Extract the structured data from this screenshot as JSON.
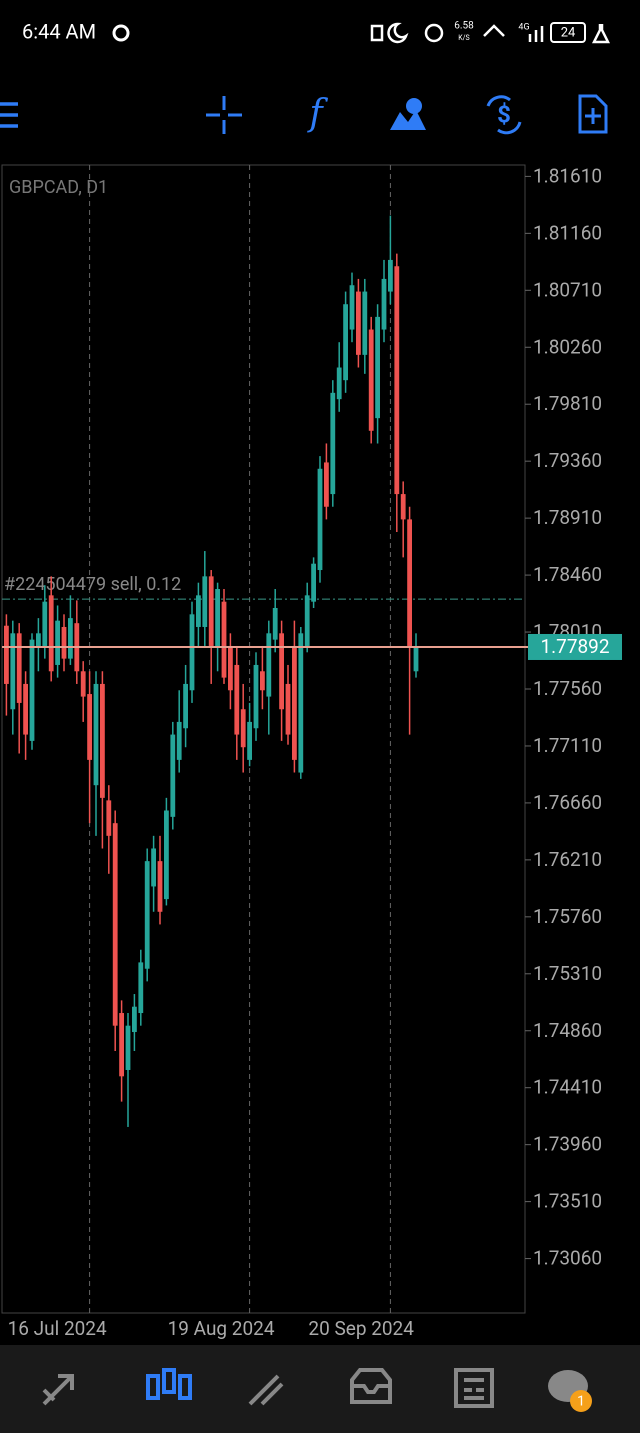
{
  "status_bar": {
    "time": "6:44 AM",
    "net_speed": "6.58",
    "net_unit": "K/S",
    "network": "4G",
    "battery": "24"
  },
  "chart_data": {
    "type": "candlestick",
    "title": "GBPCAD, D1",
    "categories": [
      null,
      null,
      null,
      null,
      null,
      null,
      null,
      null,
      null,
      null,
      null,
      null,
      null,
      "16 Jul 2024",
      null,
      null,
      null,
      null,
      null,
      null,
      null,
      null,
      null,
      null,
      null,
      null,
      null,
      null,
      null,
      null,
      null,
      null,
      null,
      null,
      null,
      null,
      null,
      null,
      "19 Aug 2024",
      null,
      null,
      null,
      null,
      null,
      null,
      null,
      null,
      null,
      null,
      null,
      null,
      null,
      null,
      null,
      null,
      null,
      null,
      null,
      null,
      null,
      "20 Sep 2024",
      null,
      null,
      null,
      null
    ],
    "open": [
      1.7806,
      1.774,
      1.78,
      1.776,
      1.7715,
      1.779,
      1.779,
      1.783,
      1.7775,
      1.7805,
      1.778,
      1.7808,
      1.777,
      1.7752,
      1.768,
      1.776,
      1.7668,
      1.765,
      1.75,
      1.7455,
      1.7485,
      1.75,
      1.7535,
      1.76,
      1.762,
      1.759,
      1.7655,
      1.77,
      1.7725,
      1.7755,
      1.7805,
      1.7805,
      1.7845,
      1.779,
      1.7825,
      1.779,
      1.7775,
      1.774,
      1.77,
      1.7725,
      1.777,
      1.775,
      1.7795,
      1.78,
      1.776,
      1.779,
      1.769,
      1.779,
      1.7825,
      1.785,
      1.7935,
      1.791,
      1.7985,
      1.8,
      1.804,
      1.807,
      1.802,
      1.804,
      1.797,
      1.804,
      1.807,
      1.809,
      1.791,
      1.789,
      1.777
    ],
    "high": [
      1.7815,
      1.781,
      1.7808,
      1.777,
      1.78,
      1.7812,
      1.7838,
      1.7845,
      1.7822,
      1.7815,
      1.783,
      1.7826,
      1.7778,
      1.777,
      1.777,
      1.777,
      1.768,
      1.766,
      1.751,
      1.75,
      1.7515,
      1.755,
      1.763,
      1.764,
      1.764,
      1.767,
      1.773,
      1.7755,
      1.7775,
      1.7825,
      1.784,
      1.7865,
      1.785,
      1.784,
      1.7835,
      1.78,
      1.779,
      1.776,
      1.7745,
      1.7785,
      1.779,
      1.781,
      1.7835,
      1.781,
      1.7775,
      1.781,
      1.7805,
      1.784,
      1.786,
      1.794,
      1.795,
      1.8,
      1.803,
      1.807,
      1.8085,
      1.808,
      1.808,
      1.805,
      1.806,
      1.8095,
      1.813,
      1.81,
      1.792,
      1.79,
      1.78
    ],
    "low": [
      1.7735,
      1.772,
      1.7705,
      1.77,
      1.7708,
      1.777,
      1.778,
      1.7762,
      1.7765,
      1.777,
      1.7775,
      1.776,
      1.773,
      1.765,
      1.764,
      1.763,
      1.761,
      1.747,
      1.743,
      1.741,
      1.747,
      1.749,
      1.7525,
      1.758,
      1.757,
      1.7585,
      1.7645,
      1.769,
      1.771,
      1.7745,
      1.779,
      1.779,
      1.776,
      1.777,
      1.776,
      1.774,
      1.77,
      1.769,
      1.7695,
      1.7715,
      1.774,
      1.772,
      1.7785,
      1.7715,
      1.7712,
      1.769,
      1.7685,
      1.7785,
      1.782,
      1.784,
      1.789,
      1.79,
      1.7975,
      1.799,
      1.803,
      1.801,
      1.8005,
      1.795,
      1.795,
      1.803,
      1.806,
      1.788,
      1.786,
      1.772,
      1.7765
    ],
    "close": [
      1.776,
      1.78,
      1.7745,
      1.772,
      1.7795,
      1.78,
      1.7825,
      1.777,
      1.781,
      1.778,
      1.7812,
      1.777,
      1.775,
      1.77,
      1.776,
      1.767,
      1.764,
      1.749,
      1.745,
      1.749,
      1.7505,
      1.754,
      1.762,
      1.763,
      1.758,
      1.766,
      1.772,
      1.773,
      1.776,
      1.7815,
      1.783,
      1.7845,
      1.779,
      1.7835,
      1.7765,
      1.7755,
      1.772,
      1.771,
      1.773,
      1.7775,
      1.7755,
      1.78,
      1.782,
      1.774,
      1.772,
      1.77,
      1.78,
      1.783,
      1.7855,
      1.793,
      1.79,
      1.799,
      1.801,
      1.806,
      1.8075,
      1.802,
      1.807,
      1.796,
      1.805,
      1.808,
      1.8095,
      1.791,
      1.789,
      1.779,
      1.7789
    ],
    "up_color": "#26a69a",
    "down_color": "#ef5350",
    "ylim": [
      1.7263,
      1.817
    ],
    "yticks": [
      {
        "value": 1.8161,
        "label": "1.81610"
      },
      {
        "value": 1.8116,
        "label": "1.81160"
      },
      {
        "value": 1.8071,
        "label": "1.80710"
      },
      {
        "value": 1.8026,
        "label": "1.80260"
      },
      {
        "value": 1.7981,
        "label": "1.79810"
      },
      {
        "value": 1.7936,
        "label": "1.79360"
      },
      {
        "value": 1.7891,
        "label": "1.78910"
      },
      {
        "value": 1.7846,
        "label": "1.78460"
      },
      {
        "value": 1.7801,
        "label": "1.78010"
      },
      {
        "value": 1.7756,
        "label": "1.77560"
      },
      {
        "value": 1.7711,
        "label": "1.77110"
      },
      {
        "value": 1.7666,
        "label": "1.76660"
      },
      {
        "value": 1.7621,
        "label": "1.76210"
      },
      {
        "value": 1.7576,
        "label": "1.75760"
      },
      {
        "value": 1.7531,
        "label": "1.75310"
      },
      {
        "value": 1.7486,
        "label": "1.74860"
      },
      {
        "value": 1.7441,
        "label": "1.74410"
      },
      {
        "value": 1.7396,
        "label": "1.73960"
      },
      {
        "value": 1.7351,
        "label": "1.73510"
      },
      {
        "value": 1.7306,
        "label": "1.73060"
      }
    ],
    "current_price": 1.77892,
    "current_price_color": "#26a69a",
    "order_line": {
      "label": "#224504479 sell, 0.12",
      "value": 1.7827
    },
    "grid": true
  },
  "bottom_nav": {
    "badge": "1"
  }
}
